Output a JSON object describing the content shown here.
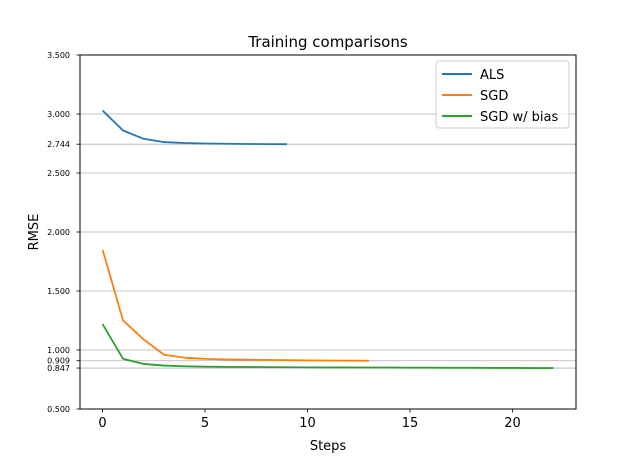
{
  "chart_data": {
    "type": "line",
    "title": "Training comparisons",
    "xlabel": "Steps",
    "ylabel": "RMSE",
    "xlim": [
      -1.1,
      23.1
    ],
    "ylim": [
      0.5,
      3.5
    ],
    "xticks": [
      0,
      5,
      10,
      15,
      20
    ],
    "xtick_labels": [
      "0",
      "5",
      "10",
      "15",
      "20"
    ],
    "yticks": [
      0.5,
      0.847,
      0.909,
      1.0,
      1.5,
      2.0,
      2.5,
      2.744,
      3.0,
      3.5
    ],
    "ytick_labels": [
      "0.500",
      "0.847",
      "0.909",
      "1.000",
      "1.500",
      "2.000",
      "2.500",
      "2.744",
      "3.000",
      "3.500"
    ],
    "grid": "horizontal",
    "legend_position": "top-right",
    "series": [
      {
        "name": "ALS",
        "color": "#1f77b4",
        "x": [
          0,
          1,
          2,
          3,
          4,
          5,
          6,
          7,
          8,
          9
        ],
        "values": [
          3.03,
          2.86,
          2.79,
          2.762,
          2.754,
          2.75,
          2.748,
          2.746,
          2.745,
          2.744
        ]
      },
      {
        "name": "SGD",
        "color": "#ff7f0e",
        "x": [
          0,
          1,
          2,
          3,
          4,
          5,
          6,
          7,
          8,
          9,
          10,
          11,
          12,
          13
        ],
        "values": [
          1.85,
          1.25,
          1.09,
          0.96,
          0.935,
          0.925,
          0.92,
          0.918,
          0.916,
          0.914,
          0.912,
          0.911,
          0.91,
          0.909
        ]
      },
      {
        "name": "SGD w/ bias",
        "color": "#2ca02c",
        "x": [
          0,
          1,
          2,
          3,
          4,
          5,
          6,
          7,
          8,
          9,
          10,
          11,
          12,
          13,
          14,
          15,
          16,
          17,
          18,
          19,
          20,
          21,
          22
        ],
        "values": [
          1.22,
          0.925,
          0.882,
          0.868,
          0.862,
          0.859,
          0.857,
          0.856,
          0.855,
          0.854,
          0.853,
          0.852,
          0.852,
          0.851,
          0.851,
          0.85,
          0.85,
          0.849,
          0.849,
          0.848,
          0.848,
          0.847,
          0.847
        ]
      }
    ]
  }
}
